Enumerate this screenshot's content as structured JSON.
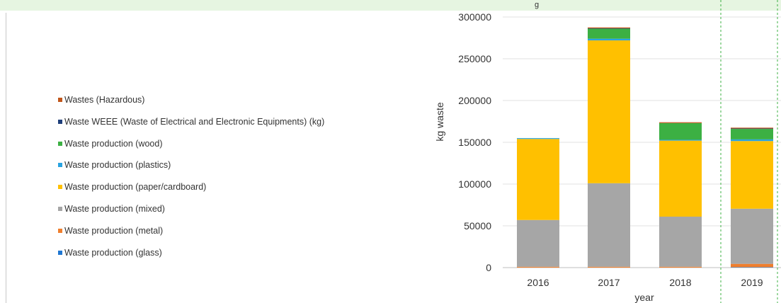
{
  "header": {
    "text": "g"
  },
  "chart_data": {
    "type": "bar",
    "stacked": true,
    "categories": [
      "2016",
      "2017",
      "2018",
      "2019"
    ],
    "xlabel": "year",
    "ylabel": "kg waste",
    "ylim": [
      0,
      300000
    ],
    "yticks": [
      0,
      50000,
      100000,
      150000,
      200000,
      250000,
      300000
    ],
    "grid": true,
    "legend_position": "left",
    "series": [
      {
        "name": "Waste production (glass)",
        "color": "#1f77d2",
        "values": [
          0,
          0,
          0,
          500
        ]
      },
      {
        "name": "Waste production (metal)",
        "color": "#ef7f2e",
        "values": [
          1000,
          1000,
          1000,
          4000
        ]
      },
      {
        "name": "Waste production (mixed)",
        "color": "#a6a6a6",
        "values": [
          56000,
          100000,
          60000,
          66000
        ]
      },
      {
        "name": "Waste production (paper/cardboard)",
        "color": "#ffc000",
        "values": [
          97000,
          171000,
          91000,
          81000
        ]
      },
      {
        "name": "Waste production (plastics)",
        "color": "#29a3e0",
        "values": [
          1000,
          2000,
          1000,
          2000
        ]
      },
      {
        "name": "Waste production (wood)",
        "color": "#3cb043",
        "values": [
          0,
          12000,
          20000,
          12500
        ]
      },
      {
        "name": "Waste WEEE (Waste of Electrical and Electronic Equipments) (kg)",
        "color": "#1f3f7a",
        "values": [
          0,
          500,
          0,
          500
        ]
      },
      {
        "name": "Wastes (Hazardous)",
        "color": "#c1561b",
        "values": [
          0,
          1000,
          1000,
          1000
        ]
      }
    ]
  }
}
